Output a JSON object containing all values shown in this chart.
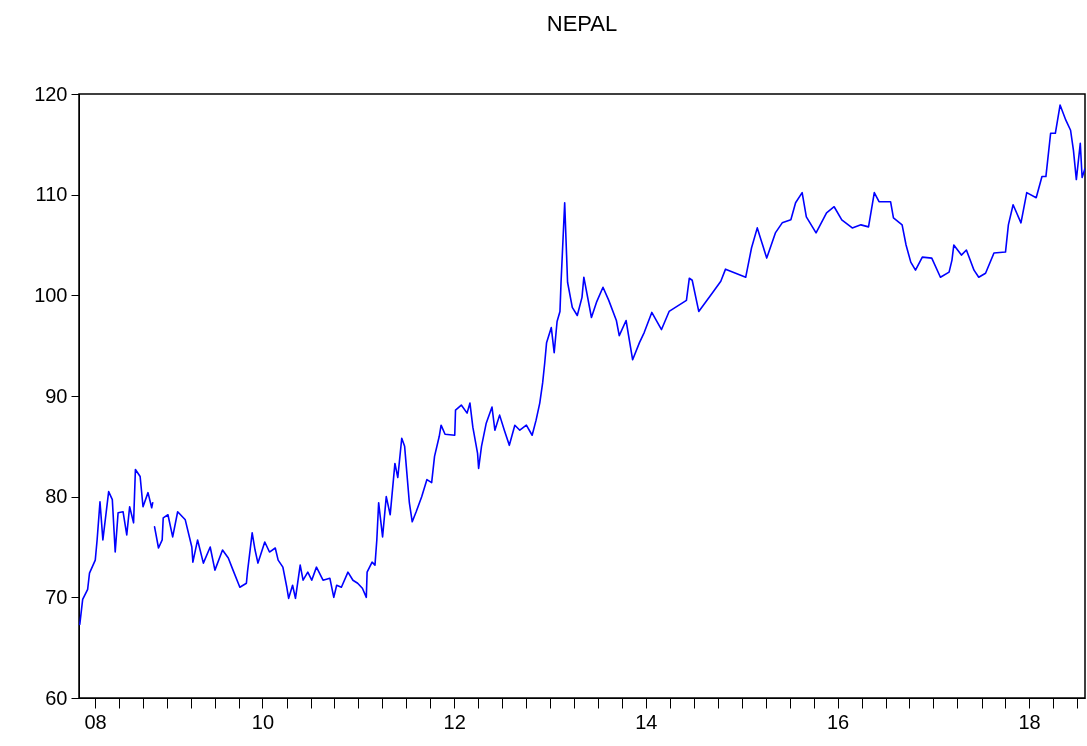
{
  "chart_data": {
    "type": "line",
    "title": "NEPAL",
    "marker": "none",
    "line_style": "solid",
    "grid": false,
    "legend": false,
    "xlim": [
      "2008-08-01",
      "2019-01-30"
    ],
    "xticks": [
      {
        "value": "2008-10-01",
        "label": "08"
      },
      {
        "value": "2009-01-01",
        "label": null
      },
      {
        "value": "2009-04-01",
        "label": null
      },
      {
        "value": "2009-07-01",
        "label": null
      },
      {
        "value": "2009-10-01",
        "label": null
      },
      {
        "value": "2010-01-01",
        "label": null
      },
      {
        "value": "2010-04-01",
        "label": null
      },
      {
        "value": "2010-07-01",
        "label": "10"
      },
      {
        "value": "2010-10-01",
        "label": null
      },
      {
        "value": "2011-01-01",
        "label": null
      },
      {
        "value": "2011-04-01",
        "label": null
      },
      {
        "value": "2011-07-01",
        "label": null
      },
      {
        "value": "2011-10-01",
        "label": null
      },
      {
        "value": "2012-01-01",
        "label": null
      },
      {
        "value": "2012-04-01",
        "label": null
      },
      {
        "value": "2012-07-01",
        "label": "12"
      },
      {
        "value": "2012-10-01",
        "label": null
      },
      {
        "value": "2013-01-01",
        "label": null
      },
      {
        "value": "2013-04-01",
        "label": null
      },
      {
        "value": "2013-07-01",
        "label": null
      },
      {
        "value": "2013-10-01",
        "label": null
      },
      {
        "value": "2014-01-01",
        "label": null
      },
      {
        "value": "2014-04-01",
        "label": null
      },
      {
        "value": "2014-07-01",
        "label": "14"
      },
      {
        "value": "2014-10-01",
        "label": null
      },
      {
        "value": "2015-01-01",
        "label": null
      },
      {
        "value": "2015-04-01",
        "label": null
      },
      {
        "value": "2015-07-01",
        "label": null
      },
      {
        "value": "2015-10-01",
        "label": null
      },
      {
        "value": "2016-01-01",
        "label": null
      },
      {
        "value": "2016-04-01",
        "label": null
      },
      {
        "value": "2016-07-01",
        "label": "16"
      },
      {
        "value": "2016-10-01",
        "label": null
      },
      {
        "value": "2017-01-01",
        "label": null
      },
      {
        "value": "2017-04-01",
        "label": null
      },
      {
        "value": "2017-07-01",
        "label": null
      },
      {
        "value": "2017-10-01",
        "label": null
      },
      {
        "value": "2018-01-01",
        "label": null
      },
      {
        "value": "2018-04-01",
        "label": null
      },
      {
        "value": "2018-07-01",
        "label": "18"
      },
      {
        "value": "2018-10-01",
        "label": null
      },
      {
        "value": "2019-01-01",
        "label": null
      }
    ],
    "ylim": [
      60,
      120
    ],
    "yticks": [
      60,
      70,
      80,
      90,
      100,
      110,
      120
    ],
    "series": [
      {
        "color": "#0000ff",
        "x": [
          "2008-08-04",
          "2008-08-15",
          "2008-09-03",
          "2008-09-10",
          "2008-10-02",
          "2008-10-09",
          "2008-10-20",
          "2008-10-31",
          "2008-11-22",
          "2008-12-06",
          "2008-12-17",
          "2008-12-28",
          "2009-01-16",
          "2009-01-30",
          "2009-02-10",
          "2009-02-25",
          "2009-03-04",
          "2009-03-22",
          "2009-04-02",
          "2009-04-21",
          "2009-05-05",
          "2009-05-09",
          "2009-05-12",
          "2009-05-16",
          "2009-05-31",
          "2009-06-14",
          "2009-06-18",
          "2009-07-06",
          "2009-07-24",
          "2009-08-12",
          "2009-09-10",
          "2009-10-05",
          "2009-10-09",
          "2009-10-27",
          "2009-11-18",
          "2009-12-14",
          "2010-01-01",
          "2010-01-30",
          "2010-02-21",
          "2010-03-11",
          "2010-04-06",
          "2010-05-01",
          "2010-05-05",
          "2010-05-23",
          "2010-06-03",
          "2010-06-14",
          "2010-07-10",
          "2010-07-28",
          "2010-08-19",
          "2010-08-30",
          "2010-09-17",
          "2010-10-02",
          "2010-10-09",
          "2010-10-24",
          "2010-11-04",
          "2010-11-22",
          "2010-12-03",
          "2010-12-21",
          "2011-01-05",
          "2011-01-23",
          "2011-02-17",
          "2011-03-15",
          "2011-03-30",
          "2011-04-10",
          "2011-04-28",
          "2011-05-23",
          "2011-06-11",
          "2011-06-29",
          "2011-07-17",
          "2011-08-01",
          "2011-08-04",
          "2011-08-23",
          "2011-09-03",
          "2011-09-10",
          "2011-09-17",
          "2011-10-02",
          "2011-10-16",
          "2011-10-31",
          "2011-11-18",
          "2011-11-29",
          "2011-12-14",
          "2011-12-25",
          "2012-01-12",
          "2012-01-23",
          "2012-02-07",
          "2012-02-28",
          "2012-03-19",
          "2012-04-06",
          "2012-04-17",
          "2012-05-05",
          "2012-05-12",
          "2012-05-27",
          "2012-07-03",
          "2012-07-06",
          "2012-07-28",
          "2012-08-19",
          "2012-08-30",
          "2012-09-10",
          "2012-09-28",
          "2012-10-02",
          "2012-10-13",
          "2012-10-31",
          "2012-11-22",
          "2012-12-03",
          "2012-12-21",
          "2013-01-08",
          "2013-01-27",
          "2013-02-17",
          "2013-03-08",
          "2013-04-02",
          "2013-04-24",
          "2013-05-09",
          "2013-05-23",
          "2013-06-03",
          "2013-06-11",
          "2013-06-18",
          "2013-07-06",
          "2013-07-17",
          "2013-07-28",
          "2013-08-08",
          "2013-08-12",
          "2013-08-26",
          "2013-09-06",
          "2013-09-24",
          "2013-10-13",
          "2013-10-31",
          "2013-11-07",
          "2013-12-06",
          "2013-12-25",
          "2014-01-19",
          "2014-02-10",
          "2014-03-11",
          "2014-03-22",
          "2014-04-17",
          "2014-05-12",
          "2014-06-07",
          "2014-06-25",
          "2014-07-24",
          "2014-08-30",
          "2014-09-28",
          "2014-12-03",
          "2014-12-14",
          "2014-12-25",
          "2015-01-19",
          "2015-03-11",
          "2015-04-13",
          "2015-05-01",
          "2015-07-17",
          "2015-08-08",
          "2015-08-30",
          "2015-10-05",
          "2015-11-07",
          "2015-12-03",
          "2016-01-05",
          "2016-01-23",
          "2016-02-17",
          "2016-03-04",
          "2016-04-10",
          "2016-05-20",
          "2016-06-18",
          "2016-07-17",
          "2016-08-26",
          "2016-09-28",
          "2016-10-27",
          "2016-11-18",
          "2016-12-06",
          "2017-01-19",
          "2017-01-30",
          "2017-03-04",
          "2017-03-19",
          "2017-04-06",
          "2017-04-24",
          "2017-05-20",
          "2017-06-25",
          "2017-07-28",
          "2017-08-30",
          "2017-09-10",
          "2017-09-17",
          "2017-10-16",
          "2017-11-04",
          "2017-12-03",
          "2017-12-21",
          "2018-01-16",
          "2018-02-17",
          "2018-04-02",
          "2018-04-13",
          "2018-05-01",
          "2018-05-31",
          "2018-06-22",
          "2018-07-28",
          "2018-08-19",
          "2018-09-03",
          "2018-09-21",
          "2018-10-09",
          "2018-10-27",
          "2018-11-18",
          "2018-12-06",
          "2018-12-17",
          "2018-12-28",
          "2019-01-12",
          "2019-01-19",
          "2019-01-30"
        ],
        "values": [
          67.3,
          69.8,
          70.8,
          72.4,
          73.7,
          75.7,
          79.5,
          75.7,
          80.5,
          79.7,
          74.5,
          78.4,
          78.5,
          76.2,
          79.0,
          77.4,
          82.7,
          82.0,
          79.0,
          80.4,
          78.9,
          79.4,
          null,
          77.0,
          74.9,
          75.7,
          77.9,
          78.2,
          76.0,
          78.5,
          77.7,
          75.0,
          73.5,
          75.7,
          73.4,
          75.0,
          72.7,
          74.7,
          73.9,
          72.7,
          71.0,
          71.4,
          72.5,
          76.4,
          74.7,
          73.4,
          75.5,
          74.5,
          74.9,
          73.7,
          73.0,
          71.0,
          69.9,
          71.2,
          69.9,
          73.2,
          71.7,
          72.5,
          71.7,
          73.0,
          71.7,
          71.9,
          70.0,
          71.2,
          71.0,
          72.5,
          71.7,
          71.4,
          70.9,
          70.0,
          72.5,
          73.5,
          73.2,
          75.7,
          79.4,
          76.0,
          80.0,
          78.2,
          83.3,
          81.9,
          85.8,
          85.0,
          79.4,
          77.5,
          78.5,
          80.0,
          81.7,
          81.4,
          84.0,
          86.0,
          87.1,
          86.2,
          86.1,
          88.6,
          89.1,
          88.3,
          89.3,
          86.9,
          84.3,
          82.8,
          85.0,
          87.3,
          88.9,
          86.6,
          88.1,
          86.6,
          85.1,
          87.1,
          86.6,
          87.1,
          86.1,
          87.6,
          89.3,
          91.3,
          93.3,
          95.3,
          96.8,
          94.3,
          97.4,
          98.4,
          101.2,
          109.2,
          101.3,
          98.8,
          98.0,
          99.8,
          101.8,
          97.8,
          99.3,
          100.8,
          99.5,
          97.5,
          96.0,
          97.5,
          93.6,
          95.3,
          96.3,
          98.3,
          96.6,
          98.4,
          99.5,
          101.7,
          101.5,
          98.4,
          100.2,
          101.4,
          102.6,
          101.8,
          104.7,
          106.7,
          103.7,
          106.2,
          107.2,
          107.5,
          109.2,
          110.2,
          107.8,
          106.2,
          108.2,
          108.8,
          107.5,
          106.7,
          107.0,
          106.8,
          110.2,
          109.3,
          109.3,
          107.7,
          107.0,
          105.0,
          103.3,
          102.5,
          103.8,
          103.7,
          101.8,
          102.3,
          103.5,
          105.0,
          104.0,
          104.5,
          102.5,
          101.8,
          102.2,
          104.2,
          104.3,
          107.0,
          109.0,
          107.2,
          110.2,
          109.7,
          111.8,
          111.8,
          116.1,
          116.1,
          118.9,
          117.4,
          116.4,
          114.4,
          111.5,
          115.1,
          111.7,
          112.6
        ]
      }
    ]
  }
}
